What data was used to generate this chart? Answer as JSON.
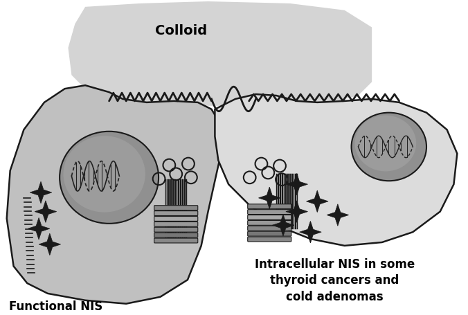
{
  "background_color": "#ffffff",
  "colloid_color": "#d4d4d4",
  "cell_left_fill": "#c0c0c0",
  "cell_right_fill": "#e8e8e8",
  "nucleus_color": "#909090",
  "dark_color": "#1a1a1a",
  "mid_gray": "#555555",
  "light_gray": "#bbbbbb",
  "label_colloid": "Colloid",
  "label_left": "Functional NIS",
  "label_right": "Intracellular NIS in some\nthyroid cancers and\ncold adenomas",
  "label_fontsize": 12,
  "colloid_fontsize": 14
}
